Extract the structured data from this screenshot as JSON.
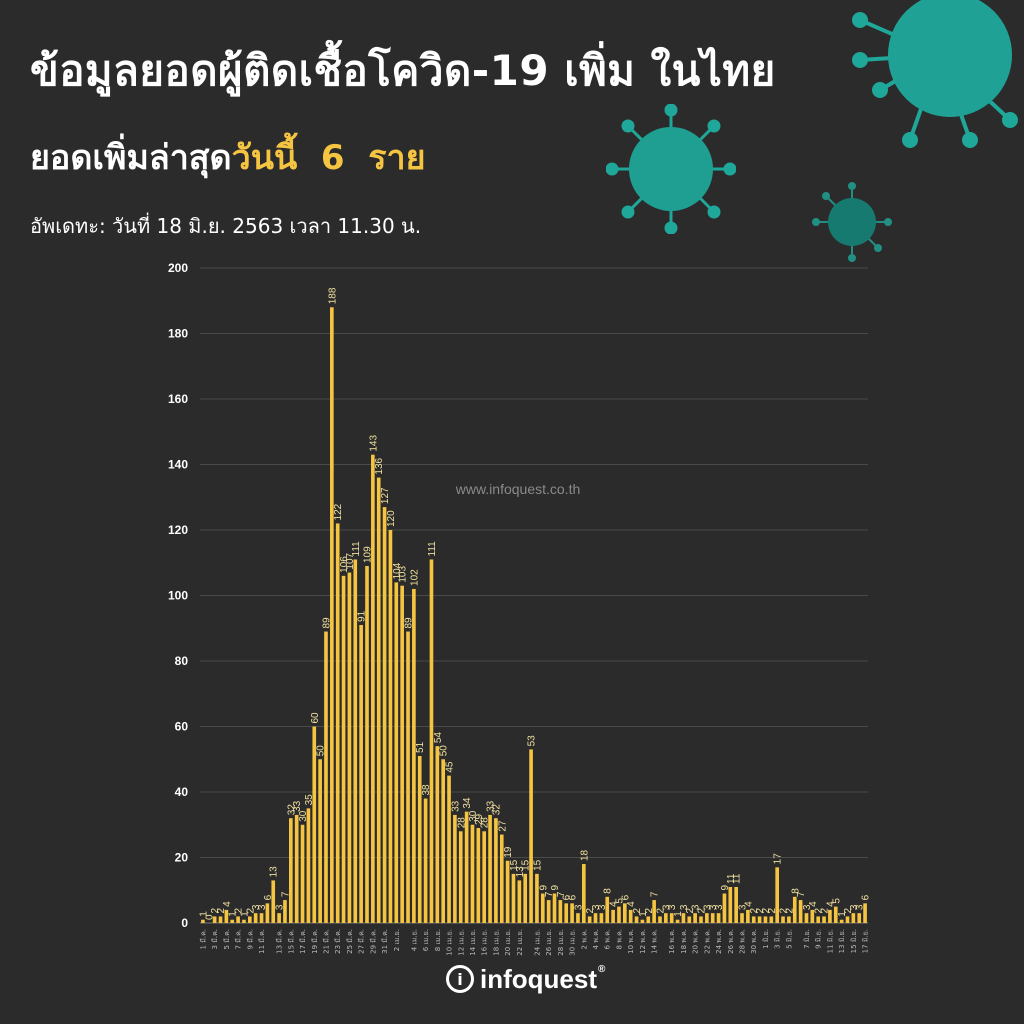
{
  "header": {
    "title": "ข้อมูลยอดผู้ติดเชื้อโควิด-19 เพิ่ม ในไทย",
    "subtitle_prefix": "ยอดเพิ่มล่าสุด",
    "subtitle_highlight": "วันนี้  6  ราย",
    "update_line": "อัพเดทะ: วันที่  18 มิ.ย. 2563 เวลา 11.30 น."
  },
  "watermark": "www.infoquest.co.th",
  "logo": {
    "mark": "i",
    "name": "infoquest",
    "reg": "®"
  },
  "colors": {
    "background": "#2b2b2b",
    "bar": "#f5c542",
    "grid": "#4a4a4a",
    "text": "#ffffff",
    "virus": "#1fa89a"
  },
  "chart_data": {
    "type": "bar",
    "title": "",
    "xlabel": "",
    "ylabel": "",
    "ylim": [
      0,
      200
    ],
    "yticks": [
      0,
      20,
      40,
      60,
      80,
      100,
      120,
      140,
      160,
      180,
      200
    ],
    "grid": true,
    "legend": "none",
    "values": [
      1,
      0,
      2,
      2,
      4,
      1,
      2,
      1,
      2,
      3,
      3,
      6,
      13,
      3,
      7,
      32,
      33,
      30,
      35,
      60,
      50,
      89,
      188,
      122,
      106,
      107,
      111,
      91,
      109,
      143,
      136,
      127,
      120,
      104,
      103,
      89,
      102,
      51,
      38,
      111,
      54,
      50,
      45,
      33,
      28,
      34,
      30,
      29,
      28,
      33,
      32,
      27,
      19,
      15,
      13,
      15,
      53,
      15,
      9,
      7,
      9,
      7,
      6,
      6,
      3,
      18,
      2,
      3,
      3,
      8,
      4,
      5,
      6,
      4,
      2,
      1,
      2,
      7,
      2,
      3,
      3,
      1,
      3,
      2,
      3,
      2,
      3,
      3,
      3,
      9,
      11,
      11,
      3,
      4,
      2,
      2,
      2,
      2,
      17,
      2,
      2,
      8,
      7,
      3,
      4,
      2,
      2,
      4,
      5,
      1,
      2,
      3,
      3,
      6
    ],
    "labels": [
      "1",
      "0",
      "2",
      "2",
      "4",
      "1",
      "2",
      "1",
      "2",
      "3",
      "3",
      "6",
      "13",
      "3",
      "7",
      "32",
      "33",
      "30",
      "35",
      "60",
      "50",
      "89",
      "188",
      "122",
      "106",
      "107",
      "111",
      "91",
      "109",
      "143",
      "136",
      "127",
      "120",
      "104",
      "103",
      "89",
      "102",
      "51",
      "38",
      "111",
      "54",
      "50",
      "45",
      "33",
      "28",
      "34",
      "30",
      "29",
      "28",
      "33",
      "32",
      "27",
      "19",
      "15",
      "13",
      "15",
      "53",
      "15",
      "9",
      "7",
      "9",
      "7",
      "6",
      "6",
      "3",
      "18",
      "2",
      "3",
      "3",
      "8",
      "4",
      "5",
      "6",
      "4",
      "2",
      "1",
      "2",
      "7",
      "2",
      "3",
      "3",
      "1",
      "3",
      "2",
      "3",
      "2",
      "3",
      "3",
      "3",
      "9",
      "11",
      "11",
      "3",
      "4",
      "2",
      "2",
      "2",
      "2",
      "17",
      "2",
      "2",
      "8",
      "7",
      "3",
      "4",
      "2",
      "2",
      "4",
      "5",
      "1",
      "2",
      "3",
      "3",
      "6"
    ],
    "x_tick_labels": [
      "1 มี.ค.",
      "3 มี.ค.",
      "5 มี.ค.",
      "7 มี.ค.",
      "9 มี.ค.",
      "11 มี.ค.",
      "13 มี.ค.",
      "15 มี.ค.",
      "17 มี.ค.",
      "19 มี.ค.",
      "21 มี.ค.",
      "23 มี.ค.",
      "25 มี.ค.",
      "27 มี.ค.",
      "29 มี.ค.",
      "31 มี.ค.",
      "2 เม.ย.",
      "4 เม.ย.",
      "6 เม.ย.",
      "8 เม.ย.",
      "10 เม.ย.",
      "12 เม.ย.",
      "14 เม.ย.",
      "16 เม.ย.",
      "18 เม.ย.",
      "20 เม.ย.",
      "22 เม.ย.",
      "24 เม.ย.",
      "26 เม.ย.",
      "28 เม.ย.",
      "30 เม.ย.",
      "2 พ.ค.",
      "4 พ.ค.",
      "6 พ.ค.",
      "8 พ.ค.",
      "10 พ.ค.",
      "12 พ.ค.",
      "14 พ.ค.",
      "16 พ.ค.",
      "18 พ.ค.",
      "20 พ.ค.",
      "22 พ.ค.",
      "24 พ.ค.",
      "26 พ.ค.",
      "28 พ.ค.",
      "30 พ.ค.",
      "1 มิ.ย.",
      "3 มิ.ย.",
      "5 มิ.ย.",
      "7 มิ.ย.",
      "9 มิ.ย.",
      "11 มิ.ย.",
      "13 มิ.ย.",
      "15 มิ.ย.",
      "17 มิ.ย."
    ]
  }
}
